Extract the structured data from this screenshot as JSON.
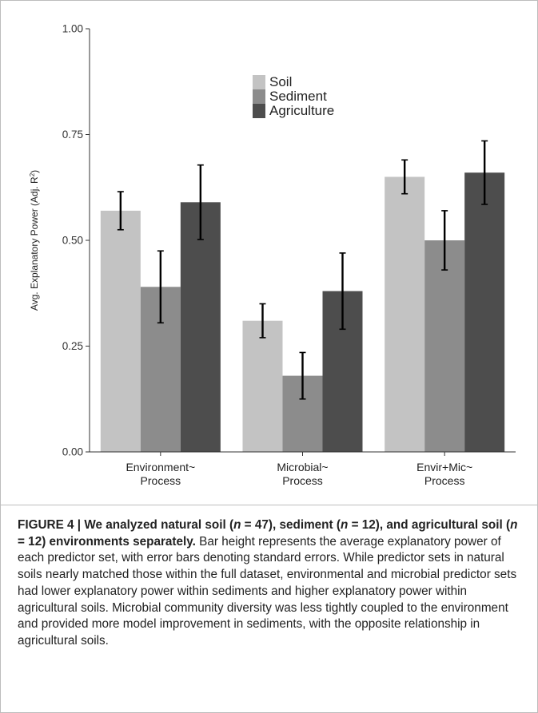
{
  "chart_data": {
    "type": "bar",
    "title": "",
    "xlabel": "",
    "ylabel": "Avg. Explanatory Power (Adj. R",
    "ylabel_superscript": "2",
    "ylabel_close": ")",
    "ylim": [
      0,
      1
    ],
    "yticks": [
      "0.00",
      "0.25",
      "0.50",
      "0.75",
      "1.00"
    ],
    "ytick_values": [
      0,
      0.25,
      0.5,
      0.75,
      1.0
    ],
    "categories": [
      [
        "Environment~",
        "Process"
      ],
      [
        "Microbial~",
        "Process"
      ],
      [
        "Envir+Mic~",
        "Process"
      ]
    ],
    "series": [
      {
        "name": "Soil",
        "color": "#c3c3c3",
        "values": [
          0.57,
          0.31,
          0.65
        ],
        "errors": [
          0.045,
          0.04,
          0.04
        ]
      },
      {
        "name": "Sediment",
        "color": "#8c8c8c",
        "values": [
          0.39,
          0.18,
          0.5
        ],
        "errors": [
          0.085,
          0.055,
          0.07
        ]
      },
      {
        "name": "Agriculture",
        "color": "#4d4d4d",
        "values": [
          0.59,
          0.38,
          0.66
        ],
        "errors": [
          0.088,
          0.09,
          0.075
        ]
      }
    ],
    "legend_position": "top-center",
    "grid": false
  },
  "caption": {
    "label": "FIGURE 4 | We analyzed natural soil (",
    "n1_var": "n",
    "n1_rest": " = 47), sediment (",
    "n2_var": "n",
    "n2_rest": " = 12), and agricultural soil (",
    "n3_var": "n",
    "n3_rest": " = 12) environments separately.",
    "body": " Bar height represents the average explanatory power of each predictor set, with error bars denoting standard errors. While predictor sets in natural soils nearly matched those within the full dataset, environmental and microbial predictor sets had lower explanatory power within sediments and higher explanatory power within agricultural soils. Microbial community diversity was less tightly coupled to the environment and provided more model improvement in sediments, with the opposite relationship in agricultural soils."
  }
}
